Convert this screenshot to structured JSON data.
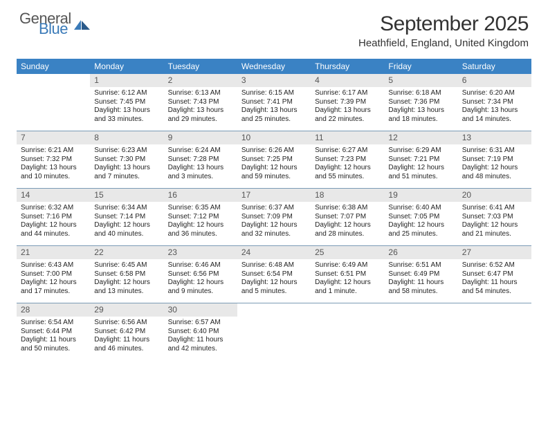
{
  "logo": {
    "main": "General",
    "sub": "Blue"
  },
  "title": "September 2025",
  "subtitle": "Heathfield, England, United Kingdom",
  "colors": {
    "header_bg": "#3a82c4",
    "header_text": "#ffffff",
    "daynum_bg": "#e8e8e8",
    "daynum_text": "#555555",
    "body_text": "#222222",
    "rule": "#7a9ab5",
    "logo_gray": "#555555",
    "logo_blue": "#3a7ab8"
  },
  "day_names": [
    "Sunday",
    "Monday",
    "Tuesday",
    "Wednesday",
    "Thursday",
    "Friday",
    "Saturday"
  ],
  "weeks": [
    [
      {
        "n": "",
        "lines": []
      },
      {
        "n": "1",
        "lines": [
          "Sunrise: 6:12 AM",
          "Sunset: 7:45 PM",
          "Daylight: 13 hours",
          "and 33 minutes."
        ]
      },
      {
        "n": "2",
        "lines": [
          "Sunrise: 6:13 AM",
          "Sunset: 7:43 PM",
          "Daylight: 13 hours",
          "and 29 minutes."
        ]
      },
      {
        "n": "3",
        "lines": [
          "Sunrise: 6:15 AM",
          "Sunset: 7:41 PM",
          "Daylight: 13 hours",
          "and 25 minutes."
        ]
      },
      {
        "n": "4",
        "lines": [
          "Sunrise: 6:17 AM",
          "Sunset: 7:39 PM",
          "Daylight: 13 hours",
          "and 22 minutes."
        ]
      },
      {
        "n": "5",
        "lines": [
          "Sunrise: 6:18 AM",
          "Sunset: 7:36 PM",
          "Daylight: 13 hours",
          "and 18 minutes."
        ]
      },
      {
        "n": "6",
        "lines": [
          "Sunrise: 6:20 AM",
          "Sunset: 7:34 PM",
          "Daylight: 13 hours",
          "and 14 minutes."
        ]
      }
    ],
    [
      {
        "n": "7",
        "lines": [
          "Sunrise: 6:21 AM",
          "Sunset: 7:32 PM",
          "Daylight: 13 hours",
          "and 10 minutes."
        ]
      },
      {
        "n": "8",
        "lines": [
          "Sunrise: 6:23 AM",
          "Sunset: 7:30 PM",
          "Daylight: 13 hours",
          "and 7 minutes."
        ]
      },
      {
        "n": "9",
        "lines": [
          "Sunrise: 6:24 AM",
          "Sunset: 7:28 PM",
          "Daylight: 13 hours",
          "and 3 minutes."
        ]
      },
      {
        "n": "10",
        "lines": [
          "Sunrise: 6:26 AM",
          "Sunset: 7:25 PM",
          "Daylight: 12 hours",
          "and 59 minutes."
        ]
      },
      {
        "n": "11",
        "lines": [
          "Sunrise: 6:27 AM",
          "Sunset: 7:23 PM",
          "Daylight: 12 hours",
          "and 55 minutes."
        ]
      },
      {
        "n": "12",
        "lines": [
          "Sunrise: 6:29 AM",
          "Sunset: 7:21 PM",
          "Daylight: 12 hours",
          "and 51 minutes."
        ]
      },
      {
        "n": "13",
        "lines": [
          "Sunrise: 6:31 AM",
          "Sunset: 7:19 PM",
          "Daylight: 12 hours",
          "and 48 minutes."
        ]
      }
    ],
    [
      {
        "n": "14",
        "lines": [
          "Sunrise: 6:32 AM",
          "Sunset: 7:16 PM",
          "Daylight: 12 hours",
          "and 44 minutes."
        ]
      },
      {
        "n": "15",
        "lines": [
          "Sunrise: 6:34 AM",
          "Sunset: 7:14 PM",
          "Daylight: 12 hours",
          "and 40 minutes."
        ]
      },
      {
        "n": "16",
        "lines": [
          "Sunrise: 6:35 AM",
          "Sunset: 7:12 PM",
          "Daylight: 12 hours",
          "and 36 minutes."
        ]
      },
      {
        "n": "17",
        "lines": [
          "Sunrise: 6:37 AM",
          "Sunset: 7:09 PM",
          "Daylight: 12 hours",
          "and 32 minutes."
        ]
      },
      {
        "n": "18",
        "lines": [
          "Sunrise: 6:38 AM",
          "Sunset: 7:07 PM",
          "Daylight: 12 hours",
          "and 28 minutes."
        ]
      },
      {
        "n": "19",
        "lines": [
          "Sunrise: 6:40 AM",
          "Sunset: 7:05 PM",
          "Daylight: 12 hours",
          "and 25 minutes."
        ]
      },
      {
        "n": "20",
        "lines": [
          "Sunrise: 6:41 AM",
          "Sunset: 7:03 PM",
          "Daylight: 12 hours",
          "and 21 minutes."
        ]
      }
    ],
    [
      {
        "n": "21",
        "lines": [
          "Sunrise: 6:43 AM",
          "Sunset: 7:00 PM",
          "Daylight: 12 hours",
          "and 17 minutes."
        ]
      },
      {
        "n": "22",
        "lines": [
          "Sunrise: 6:45 AM",
          "Sunset: 6:58 PM",
          "Daylight: 12 hours",
          "and 13 minutes."
        ]
      },
      {
        "n": "23",
        "lines": [
          "Sunrise: 6:46 AM",
          "Sunset: 6:56 PM",
          "Daylight: 12 hours",
          "and 9 minutes."
        ]
      },
      {
        "n": "24",
        "lines": [
          "Sunrise: 6:48 AM",
          "Sunset: 6:54 PM",
          "Daylight: 12 hours",
          "and 5 minutes."
        ]
      },
      {
        "n": "25",
        "lines": [
          "Sunrise: 6:49 AM",
          "Sunset: 6:51 PM",
          "Daylight: 12 hours",
          "and 1 minute."
        ]
      },
      {
        "n": "26",
        "lines": [
          "Sunrise: 6:51 AM",
          "Sunset: 6:49 PM",
          "Daylight: 11 hours",
          "and 58 minutes."
        ]
      },
      {
        "n": "27",
        "lines": [
          "Sunrise: 6:52 AM",
          "Sunset: 6:47 PM",
          "Daylight: 11 hours",
          "and 54 minutes."
        ]
      }
    ],
    [
      {
        "n": "28",
        "lines": [
          "Sunrise: 6:54 AM",
          "Sunset: 6:44 PM",
          "Daylight: 11 hours",
          "and 50 minutes."
        ]
      },
      {
        "n": "29",
        "lines": [
          "Sunrise: 6:56 AM",
          "Sunset: 6:42 PM",
          "Daylight: 11 hours",
          "and 46 minutes."
        ]
      },
      {
        "n": "30",
        "lines": [
          "Sunrise: 6:57 AM",
          "Sunset: 6:40 PM",
          "Daylight: 11 hours",
          "and 42 minutes."
        ]
      },
      {
        "n": "",
        "lines": []
      },
      {
        "n": "",
        "lines": []
      },
      {
        "n": "",
        "lines": []
      },
      {
        "n": "",
        "lines": []
      }
    ]
  ]
}
